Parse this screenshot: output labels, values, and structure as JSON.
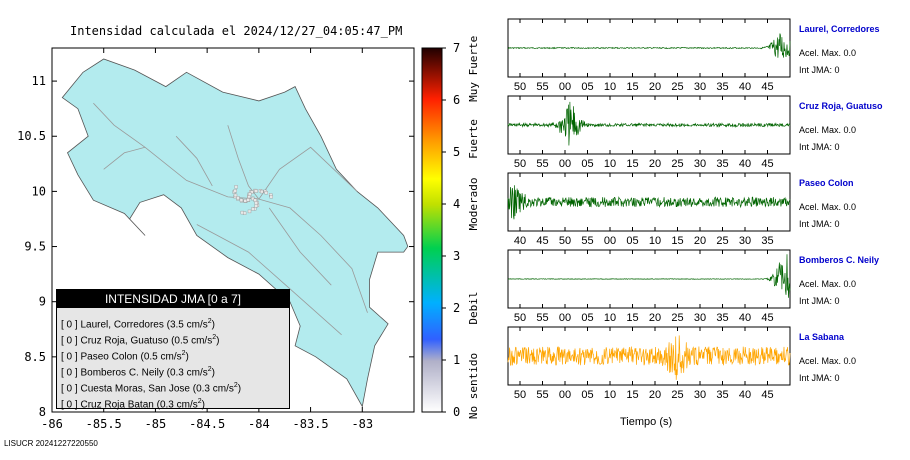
{
  "title": "Intensidad calculada el 2024/12/27_04:05:47_PM",
  "map": {
    "x_ticks": [
      "-86",
      "-85.5",
      "-85",
      "-84.5",
      "-84",
      "-83.5",
      "-83"
    ],
    "x_values": [
      -86,
      -85.5,
      -85,
      -84.5,
      -84,
      -83.5,
      -83
    ],
    "y_ticks": [
      "11",
      "10.5",
      "10",
      "9.5",
      "9",
      "8.5",
      "8"
    ],
    "y_values": [
      11,
      10.5,
      10,
      9.5,
      9,
      8.5,
      8
    ],
    "xlim": [
      -86,
      -82.5
    ],
    "ylim": [
      8,
      11.3
    ],
    "land_color": "#b3ebee"
  },
  "colorbar": {
    "ticks": [
      "0",
      "1",
      "2",
      "3",
      "4",
      "5",
      "6",
      "7"
    ],
    "range": [
      0,
      7
    ],
    "labels": [
      "No sentido",
      "Debil",
      "Moderado",
      "Fuerte",
      "Muy Fuerte"
    ]
  },
  "legend": {
    "title": "INTENSIDAD JMA [0 a 7]",
    "rows": [
      {
        "int": "[ 0 ]",
        "station": "Laurel, Corredores",
        "value": "(3.5 cm/s",
        "exp": "2",
        "close": ")"
      },
      {
        "int": "[ 0 ]",
        "station": "Cruz Roja, Guatuso",
        "value": "(0.5 cm/s",
        "exp": "2",
        "close": ")"
      },
      {
        "int": "[ 0 ]",
        "station": "Paseo Colon",
        "value": "(0.5 cm/s",
        "exp": "2",
        "close": ")"
      },
      {
        "int": "[ 0 ]",
        "station": "Bomberos C. Neily",
        "value": "(0.3 cm/s",
        "exp": "2",
        "close": ")"
      },
      {
        "int": "[ 0 ]",
        "station": "Cuesta Moras, San Jose",
        "value": "(0.3 cm/s",
        "exp": "2",
        "close": ")"
      },
      {
        "int": "[ 0 ]",
        "station": "Cruz Roja Batan",
        "value": "(0.3 cm/s",
        "exp": "2",
        "close": ")"
      }
    ]
  },
  "footer": "LISUCR 20241227220550",
  "chart_data": [
    {
      "type": "line",
      "x_ticks": [
        "50",
        "55",
        "00",
        "05",
        "10",
        "15",
        "20",
        "25",
        "30",
        "35",
        "40",
        "45"
      ],
      "stations": [
        {
          "name": "Laurel, Corredores",
          "accel": "Acel. Max. 0.0",
          "int": "Int JMA: 0",
          "color": "#006400",
          "burst": 0.97,
          "amp": 0.55,
          "noise": 0.02
        },
        {
          "name": "Cruz Roja, Guatuso",
          "accel": "Acel. Max. 0.0",
          "int": "Int JMA: 0",
          "color": "#006400",
          "burst": 0.22,
          "amp": 0.8,
          "noise": 0.06
        },
        {
          "name": "Paseo Colon",
          "accel": "Acel. Max. 0.0",
          "int": "Int JMA: 0",
          "color": "#006400",
          "burst": 0.02,
          "amp": 0.5,
          "noise": 0.18
        },
        {
          "name": "Bomberos C. Neily",
          "accel": "Acel. Max. 0.0",
          "int": "Int JMA: 0",
          "color": "#006400",
          "burst": 0.985,
          "amp": 0.95,
          "noise": 0.01
        },
        {
          "name": "La Sabana",
          "accel": "Acel. Max. 0.0",
          "int": "Int JMA: 0",
          "color": "#ffa500",
          "burst": 0.6,
          "amp": 0.55,
          "noise": 0.35
        }
      ],
      "tick_sets": [
        [
          "50",
          "55",
          "00",
          "05",
          "10",
          "15",
          "20",
          "25",
          "30",
          "35",
          "40",
          "45"
        ],
        [
          "50",
          "55",
          "00",
          "05",
          "10",
          "15",
          "20",
          "25",
          "30",
          "35",
          "40",
          "45"
        ],
        [
          "40",
          "45",
          "50",
          "55",
          "00",
          "05",
          "10",
          "15",
          "20",
          "25",
          "30",
          "35"
        ],
        [
          "50",
          "55",
          "00",
          "05",
          "10",
          "15",
          "20",
          "25",
          "30",
          "35",
          "40",
          "45"
        ],
        [
          "50",
          "55",
          "00",
          "05",
          "10",
          "15",
          "20",
          "25",
          "30",
          "35",
          "40",
          "45"
        ]
      ],
      "xlabel": "Tiempo (s)"
    }
  ]
}
